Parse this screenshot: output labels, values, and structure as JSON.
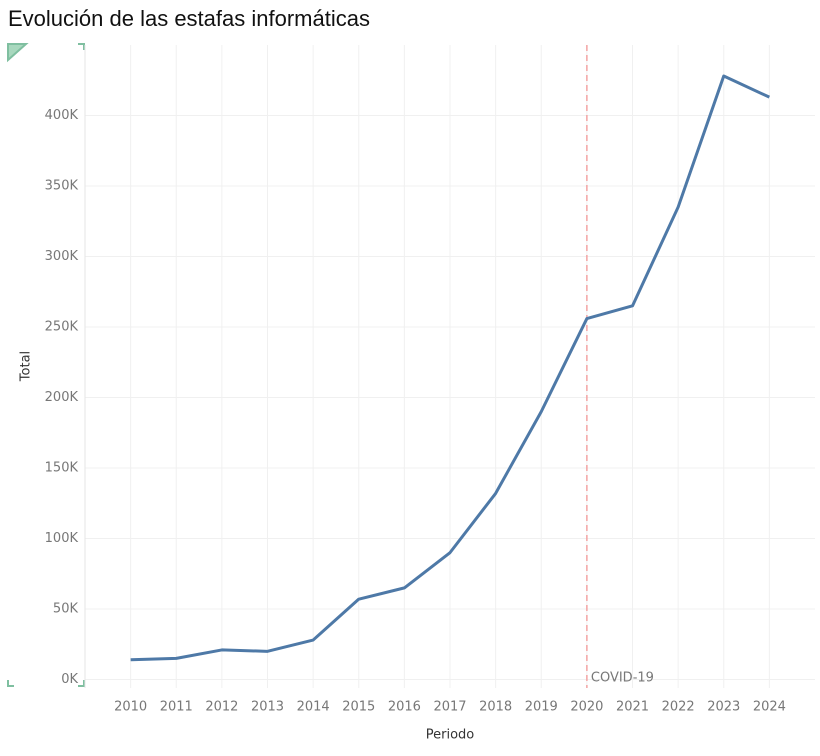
{
  "chart_data": {
    "type": "line",
    "title": "Evolución de las estafas informáticas",
    "x_label": "Periodo",
    "y_label": "Total",
    "categories": [
      "2010",
      "2011",
      "2012",
      "2013",
      "2014",
      "2015",
      "2016",
      "2017",
      "2018",
      "2019",
      "2020",
      "2021",
      "2022",
      "2023",
      "2024"
    ],
    "series": [
      {
        "name": "Total",
        "color": "#4e79a7",
        "values": [
          14000,
          15000,
          21000,
          20000,
          28000,
          57000,
          65000,
          90000,
          132000,
          190000,
          256000,
          265000,
          335000,
          428000,
          413000
        ]
      }
    ],
    "ylim": [
      -6000,
      450000
    ],
    "yticks": [
      {
        "value": 0,
        "label": "0K"
      },
      {
        "value": 50000,
        "label": "50K"
      },
      {
        "value": 100000,
        "label": "100K"
      },
      {
        "value": 150000,
        "label": "150K"
      },
      {
        "value": 200000,
        "label": "200K"
      },
      {
        "value": 250000,
        "label": "250K"
      },
      {
        "value": 300000,
        "label": "300K"
      },
      {
        "value": 350000,
        "label": "350K"
      },
      {
        "value": 400000,
        "label": "400K"
      }
    ],
    "grid": true,
    "annotations": [
      {
        "x": "2020",
        "label": "COVID-19",
        "color": "#f4a3a3"
      }
    ]
  }
}
